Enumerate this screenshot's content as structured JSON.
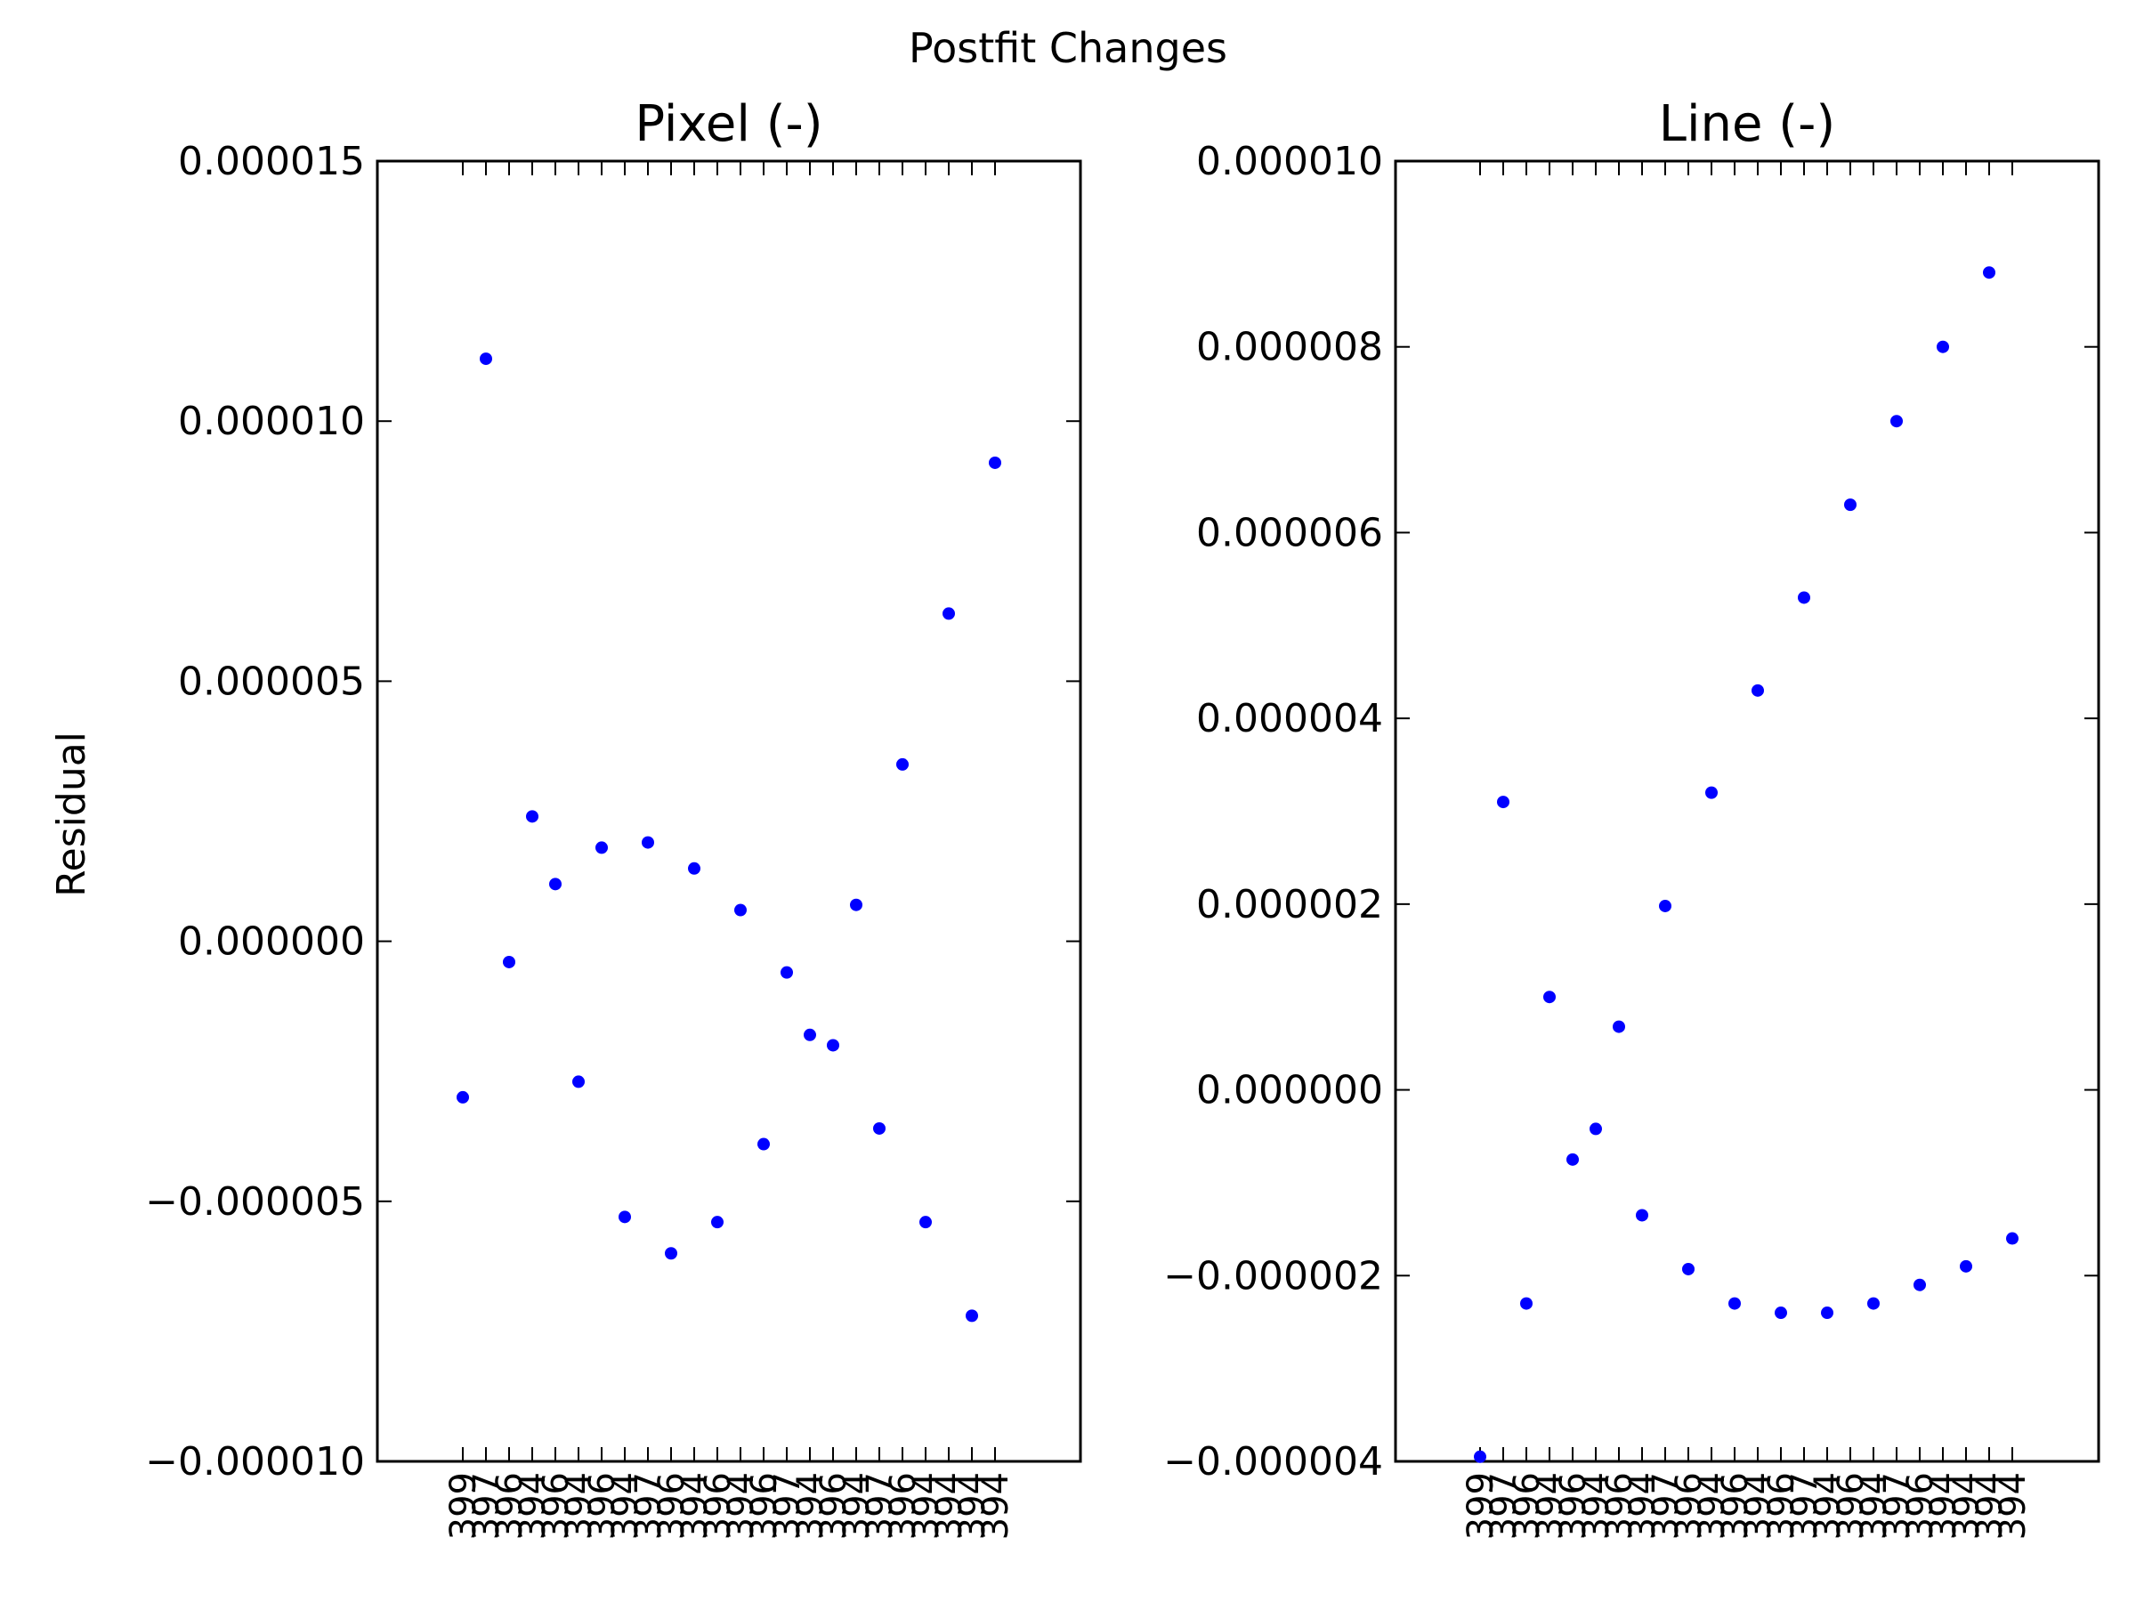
{
  "figure": {
    "suptitle": "Postfit Changes",
    "ylabel": "Residual"
  },
  "chart_data": [
    {
      "type": "scatter",
      "title": "Pixel (-)",
      "xlabel": "",
      "ylabel": "Residual",
      "ylim": [
        -1e-05,
        1.5e-05
      ],
      "yticks": [
        -1e-05,
        -5e-06,
        0.0,
        5e-06,
        1e-05,
        1.5e-05
      ],
      "ytick_labels": [
        "−0.000010",
        "−0.000005",
        "0.000000",
        "0.000005",
        "0.000010",
        "0.000015"
      ],
      "grid": false,
      "marker_color": "#0000ff",
      "x_tick_labels": [
        "399",
        "397",
        "396",
        "394",
        "396",
        "394",
        "396",
        "394",
        "397",
        "396",
        "394",
        "396",
        "394",
        "396",
        "397",
        "394",
        "396",
        "394",
        "397",
        "396",
        "394",
        "394",
        "394",
        "394"
      ],
      "x": [
        1,
        2,
        3,
        4,
        5,
        6,
        7,
        8,
        9,
        10,
        11,
        12,
        13,
        14,
        15,
        16,
        17,
        18,
        19,
        20,
        21,
        22,
        23,
        24
      ],
      "y": [
        -3e-06,
        1.12e-05,
        -4e-07,
        2.4e-06,
        1.1e-06,
        -2.7e-06,
        1.8e-06,
        -5.3e-06,
        1.9e-06,
        -6e-06,
        1.4e-06,
        -5.4e-06,
        6e-07,
        -3.9e-06,
        -6e-07,
        -1.8e-06,
        -2e-06,
        7e-07,
        -3.6e-06,
        3.4e-06,
        -5.4e-06,
        6.3e-06,
        -7.2e-06,
        9.2e-06
      ]
    },
    {
      "type": "scatter",
      "title": "Line (-)",
      "xlabel": "",
      "ylabel": "",
      "ylim": [
        -4e-06,
        1e-05
      ],
      "yticks": [
        -4e-06,
        -2e-06,
        0.0,
        2e-06,
        4e-06,
        6e-06,
        8e-06,
        1e-05
      ],
      "ytick_labels": [
        "−0.000004",
        "−0.000002",
        "0.000000",
        "0.000002",
        "0.000004",
        "0.000006",
        "0.000008",
        "0.000010"
      ],
      "grid": false,
      "marker_color": "#0000ff",
      "x_tick_labels": [
        "399",
        "397",
        "396",
        "394",
        "396",
        "394",
        "396",
        "394",
        "397",
        "396",
        "394",
        "396",
        "394",
        "396",
        "397",
        "394",
        "396",
        "394",
        "397",
        "396",
        "394",
        "394",
        "394",
        "394"
      ],
      "x": [
        1,
        2,
        3,
        4,
        5,
        6,
        7,
        8,
        9,
        10,
        11,
        12,
        13,
        14,
        15,
        16,
        17,
        18,
        19,
        20,
        21,
        22,
        23,
        24
      ],
      "y": [
        -3.95e-06,
        3.1e-06,
        -2.3e-06,
        1e-06,
        -7.5e-07,
        -4.2e-07,
        6.8e-07,
        -1.35e-06,
        1.98e-06,
        -1.93e-06,
        3.2e-06,
        -2.3e-06,
        4.3e-06,
        -2.4e-06,
        5.3e-06,
        -2.4e-06,
        6.3e-06,
        -2.3e-06,
        7.2e-06,
        -2.1e-06,
        8e-06,
        -1.9e-06,
        8.8e-06,
        -1.6e-06
      ]
    }
  ]
}
